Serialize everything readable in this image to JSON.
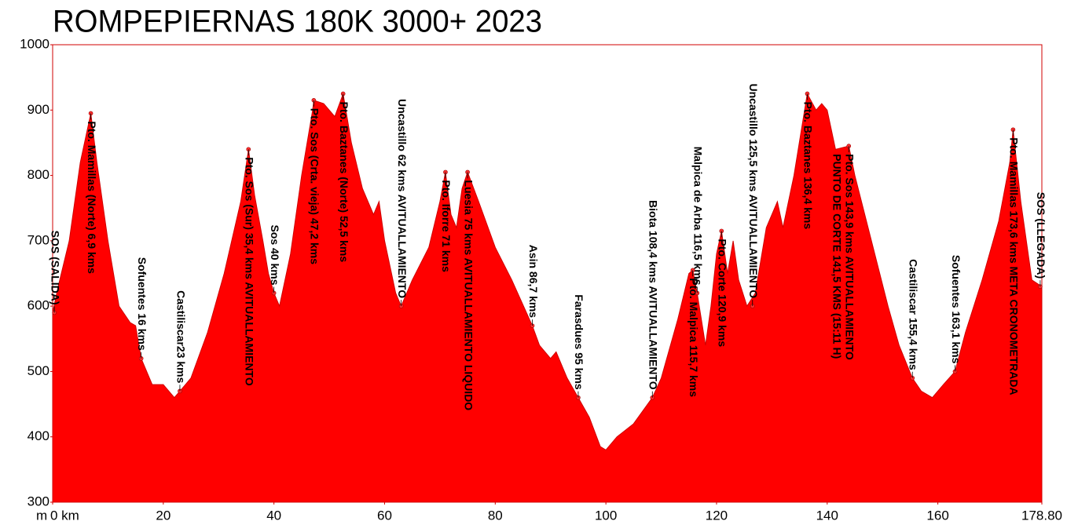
{
  "chart_data": {
    "type": "area",
    "title": "ROMPEPIERNAS 180K 3000+ 2023",
    "y_label": "m",
    "color": "#ff0000",
    "xlim": [
      0,
      178.8
    ],
    "ylim": [
      300,
      1000
    ],
    "xticks": [
      {
        "value": 0,
        "label": "0 km"
      },
      20,
      40,
      60,
      80,
      100,
      120,
      140,
      160,
      {
        "value": 178.8,
        "label": "178.80"
      }
    ],
    "yticks": [
      300,
      400,
      500,
      600,
      700,
      800,
      900,
      1000
    ],
    "x": [
      0,
      1,
      3,
      5,
      6.9,
      8,
      10,
      12,
      14,
      15,
      16,
      18,
      20,
      22,
      23,
      25,
      28,
      31,
      34,
      35.4,
      36.5,
      38,
      39,
      40,
      41,
      43,
      45,
      47,
      47.2,
      49,
      51,
      52.5,
      54,
      56,
      58,
      59,
      60,
      62,
      63,
      65,
      68,
      70,
      71,
      72,
      73,
      74,
      75,
      77,
      80,
      83,
      86.7,
      88,
      90,
      91,
      93,
      95,
      97,
      99,
      100,
      102,
      105,
      108.4,
      110,
      113,
      115,
      115.7,
      116.5,
      118,
      119,
      120,
      120.9,
      122,
      123,
      124,
      125.5,
      127,
      129,
      131,
      132,
      134,
      136.4,
      138,
      139,
      140,
      141.5,
      143.9,
      145,
      148,
      151,
      153,
      155.4,
      157,
      159,
      161,
      163.1,
      165,
      168,
      171,
      173,
      173.6,
      175,
      177,
      178.8
    ],
    "values": [
      590,
      630,
      700,
      820,
      895,
      820,
      700,
      600,
      575,
      570,
      520,
      480,
      480,
      460,
      470,
      490,
      560,
      650,
      760,
      840,
      770,
      700,
      650,
      620,
      600,
      680,
      800,
      900,
      915,
      910,
      890,
      925,
      850,
      780,
      740,
      760,
      700,
      620,
      600,
      640,
      690,
      760,
      805,
      740,
      720,
      780,
      805,
      760,
      690,
      640,
      570,
      540,
      520,
      530,
      490,
      460,
      430,
      385,
      380,
      400,
      420,
      460,
      490,
      580,
      650,
      655,
      620,
      540,
      600,
      680,
      715,
      650,
      700,
      640,
      600,
      620,
      720,
      760,
      720,
      800,
      925,
      900,
      910,
      900,
      840,
      845,
      800,
      700,
      600,
      540,
      490,
      470,
      460,
      480,
      500,
      560,
      640,
      730,
      820,
      870,
      760,
      640,
      630
    ],
    "annotations": [
      {
        "x": 0.3,
        "y": 590,
        "text": [
          "SOS (SALIDA)"
        ]
      },
      {
        "x": 6.9,
        "y": 895,
        "text": [
          "Pto. Mamillas (Norte) 6,9 kms"
        ]
      },
      {
        "x": 16,
        "y": 520,
        "text": [
          "Sofuentes 16 kms"
        ]
      },
      {
        "x": 23,
        "y": 470,
        "text": [
          "Castiliscar23 kms"
        ]
      },
      {
        "x": 35.4,
        "y": 840,
        "text": [
          "Pto. Sos (Sur) 35,4 kms AVITUALLAMIENTO"
        ]
      },
      {
        "x": 40,
        "y": 620,
        "text": [
          "Sos 40 kms"
        ]
      },
      {
        "x": 47.2,
        "y": 915,
        "text": [
          "Pto. Sos (Crta. vieja) 47,2 kms"
        ]
      },
      {
        "x": 52.5,
        "y": 925,
        "text": [
          "Pto. Baztanes (Norte) 52,5 kms"
        ]
      },
      {
        "x": 63,
        "y": 600,
        "text": [
          "Uncastillo 62 kms AVITUALLAMIENTO"
        ]
      },
      {
        "x": 71,
        "y": 805,
        "text": [
          "Pto. Iforre 71 kms"
        ]
      },
      {
        "x": 75,
        "y": 805,
        "text": [
          "Luesia 75 kms AVITUALLAMIENTO LIQUIDO"
        ]
      },
      {
        "x": 86.7,
        "y": 570,
        "text": [
          "Asin 86,7 kms"
        ]
      },
      {
        "x": 95,
        "y": 460,
        "text": [
          "Farasdues 95 kms"
        ]
      },
      {
        "x": 108.4,
        "y": 460,
        "text": [
          "Biota 108,4 kms AVITUALLAMIENTO"
        ]
      },
      {
        "x": 116.5,
        "y": 620,
        "text": [
          "Malpica de Arba 116,5 kms"
        ]
      },
      {
        "x": 115.7,
        "y": 655,
        "text": [
          "Pto. Malpica 115,7 kms"
        ]
      },
      {
        "x": 120.9,
        "y": 715,
        "text": [
          "Pto. Corte 120,9 kms"
        ]
      },
      {
        "x": 126.5,
        "y": 600,
        "text": [
          "Uncastillo 125,5 kms AVITUALLAMIENTO"
        ]
      },
      {
        "x": 136.4,
        "y": 925,
        "text": [
          "Pto. Baztanes 136,4 kms"
        ]
      },
      {
        "x": 143.9,
        "y": 845,
        "text": [
          "Pto. Sos 143,9 kms AVITUALLAMIENTO",
          "PUNTO DE CORTE 141,5 KMS (15:11 H)"
        ]
      },
      {
        "x": 155.4,
        "y": 490,
        "text": [
          "Castiliscar 155,4 kms"
        ]
      },
      {
        "x": 163.1,
        "y": 500,
        "text": [
          "Sofuentes 163,1 kms"
        ]
      },
      {
        "x": 173.6,
        "y": 870,
        "text": [
          "Pto. Mamillas 173,6 kms META CRONOMETRADA"
        ]
      },
      {
        "x": 178.5,
        "y": 630,
        "text": [
          "SOS (LLEGADA)"
        ]
      }
    ]
  }
}
